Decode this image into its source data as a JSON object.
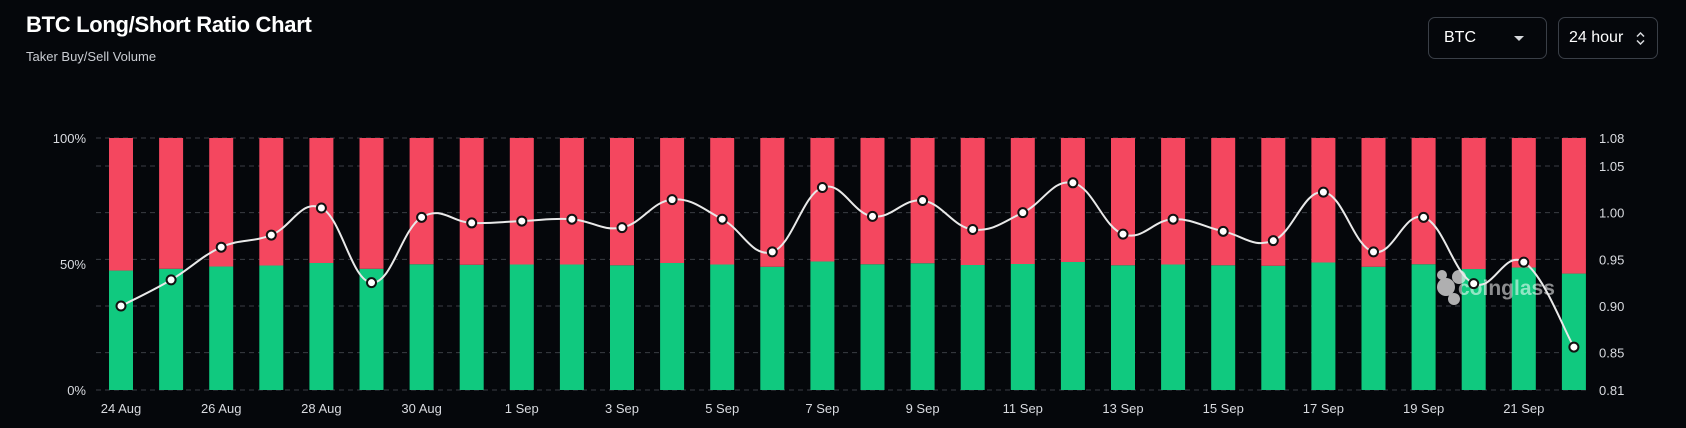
{
  "header": {
    "title": "BTC Long/Short Ratio Chart",
    "subtitle": "Taker Buy/Sell Volume"
  },
  "controls": {
    "coin_select": {
      "value": "BTC",
      "icon": "chevron-down-icon"
    },
    "period_select": {
      "value": "24 hour",
      "icon": "up-down-arrows-icon"
    }
  },
  "watermark": "coinglass",
  "colors": {
    "background": "#05070b",
    "buy": "#10c97f",
    "sell": "#f4475f",
    "line": "#e9e9e9",
    "grid": "#3a3d44"
  },
  "chart_data": {
    "type": "bar",
    "stacked": true,
    "categories": [
      "24 Aug",
      "25 Aug",
      "26 Aug",
      "27 Aug",
      "28 Aug",
      "29 Aug",
      "30 Aug",
      "31 Aug",
      "1 Sep",
      "2 Sep",
      "3 Sep",
      "4 Sep",
      "5 Sep",
      "6 Sep",
      "7 Sep",
      "8 Sep",
      "9 Sep",
      "10 Sep",
      "11 Sep",
      "12 Sep",
      "13 Sep",
      "14 Sep",
      "15 Sep",
      "16 Sep",
      "17 Sep",
      "18 Sep",
      "19 Sep",
      "20 Sep",
      "21 Sep",
      "22 Sep"
    ],
    "x_tick_labels": [
      "24 Aug",
      "26 Aug",
      "28 Aug",
      "30 Aug",
      "1 Sep",
      "3 Sep",
      "5 Sep",
      "7 Sep",
      "9 Sep",
      "11 Sep",
      "13 Sep",
      "15 Sep",
      "17 Sep",
      "19 Sep",
      "21 Sep"
    ],
    "series": [
      {
        "name": "",
        "role": "buy",
        "color": "#10c97f",
        "values": [
          47.4,
          48.1,
          49.0,
          49.4,
          50.4,
          48.1,
          49.9,
          49.7,
          49.8,
          49.8,
          49.5,
          50.4,
          49.8,
          48.9,
          51.0,
          49.9,
          50.3,
          49.6,
          50.0,
          50.8,
          49.5,
          49.8,
          49.5,
          49.3,
          50.6,
          48.9,
          49.9,
          48.0,
          48.6,
          46.2
        ]
      },
      {
        "name": "",
        "role": "sell",
        "color": "#f4475f",
        "values": [
          52.6,
          51.9,
          51.0,
          50.6,
          49.6,
          51.9,
          50.1,
          50.3,
          50.2,
          50.2,
          50.5,
          49.6,
          50.2,
          51.1,
          49.0,
          50.1,
          49.7,
          50.4,
          50.0,
          49.2,
          50.5,
          50.2,
          50.5,
          50.7,
          49.4,
          51.1,
          50.1,
          52.0,
          51.4,
          53.8
        ]
      },
      {
        "name": "",
        "role": "ratio",
        "type": "line",
        "axis": "right",
        "color": "#e9e9e9",
        "values": [
          0.9,
          0.928,
          0.963,
          0.976,
          1.005,
          0.925,
          0.995,
          0.989,
          0.991,
          0.993,
          0.984,
          1.014,
          0.993,
          0.958,
          1.027,
          0.996,
          1.013,
          0.982,
          1.0,
          1.032,
          0.977,
          0.993,
          0.98,
          0.97,
          1.022,
          0.958,
          0.995,
          0.924,
          0.947,
          0.856
        ]
      }
    ],
    "y_left": {
      "range": [
        0,
        100
      ],
      "ticks": [
        "0%",
        "50%",
        "100%"
      ]
    },
    "y_right": {
      "range": [
        0.81,
        1.08
      ],
      "ticks": [
        "0.81",
        "0.85",
        "0.90",
        "0.95",
        "1.00",
        "1.05",
        "1.08"
      ]
    },
    "grid": true,
    "legend": "none"
  }
}
